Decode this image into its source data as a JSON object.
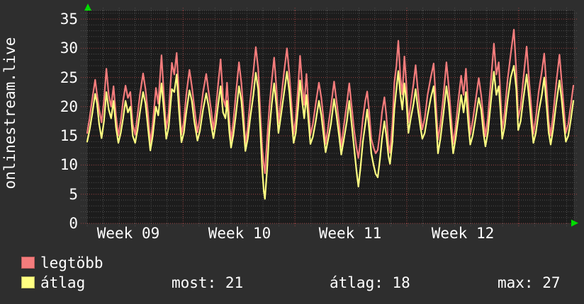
{
  "legend": [
    {
      "label": "legtöbb",
      "color": "#f47c7c",
      "border": "#b85b5b"
    },
    {
      "label": "átlag",
      "color": "#ffff82",
      "border": "#b6b65e"
    }
  ],
  "stats": [
    {
      "label": "most",
      "value": 21,
      "text": "most: 21"
    },
    {
      "label": "átlag",
      "value": 18,
      "text": "átlag: 18"
    },
    {
      "label": "max",
      "value": 27,
      "text": "max: 27"
    }
  ],
  "colors": {
    "background": "#2e2e2e",
    "plot_background": "#1c1c1c",
    "text": "#ffffff",
    "grid_minor": "#4f4f4f",
    "grid_major": "#9c4343",
    "axis_arrow": "#00dc00",
    "series_legtobb": "#f47c7c",
    "series_atlag": "#ffff82"
  },
  "chart_data": {
    "type": "line",
    "title": "onlinestream.live",
    "ylabel": "onlinestream.live",
    "xlabel": "",
    "ylim": [
      0,
      36.5
    ],
    "yticks": [
      0,
      5,
      10,
      15,
      20,
      25,
      30,
      35
    ],
    "y_minor_step": 1,
    "x_unit": "days",
    "xlim_days": [
      0,
      30.47
    ],
    "x_minor_step_days": 1,
    "week_boundaries_days": [
      6,
      13,
      20,
      27
    ],
    "xtick_labels": [
      "Week 09",
      "Week 10",
      "Week 11",
      "Week 12"
    ],
    "xtick_label_days": [
      2.57,
      9.53,
      16.45,
      23.5
    ],
    "grid": {
      "minor_color": "#4f4f4f",
      "major_color": "#9c4343",
      "style": "dotted"
    },
    "legend_position": "bottom-left",
    "series_names": [
      "legtöbb",
      "átlag"
    ],
    "series_colors": [
      "#f47c7c",
      "#ffff82"
    ],
    "points_format": [
      "day",
      "legtöbb",
      "átlag"
    ],
    "points": [
      [
        0.0,
        15.5,
        14.0
      ],
      [
        0.15,
        18.0,
        16.0
      ],
      [
        0.3,
        21.0,
        18.5
      ],
      [
        0.5,
        24.6,
        22.2
      ],
      [
        0.62,
        22.0,
        20.5
      ],
      [
        0.75,
        19.5,
        17.0
      ],
      [
        0.9,
        17.3,
        14.6
      ],
      [
        1.05,
        21.0,
        17.5
      ],
      [
        1.2,
        26.5,
        22.5
      ],
      [
        1.35,
        22.0,
        19.5
      ],
      [
        1.5,
        20.0,
        18.0
      ],
      [
        1.65,
        23.5,
        21.0
      ],
      [
        1.8,
        18.5,
        16.5
      ],
      [
        1.95,
        15.0,
        13.8
      ],
      [
        2.1,
        17.5,
        15.5
      ],
      [
        2.25,
        21.0,
        18.0
      ],
      [
        2.4,
        23.6,
        21.0
      ],
      [
        2.55,
        21.5,
        19.0
      ],
      [
        2.7,
        22.5,
        20.0
      ],
      [
        2.85,
        17.0,
        15.0
      ],
      [
        3.0,
        15.2,
        13.8
      ],
      [
        3.15,
        18.5,
        16.0
      ],
      [
        3.3,
        22.0,
        19.0
      ],
      [
        3.5,
        25.7,
        22.5
      ],
      [
        3.65,
        23.0,
        20.5
      ],
      [
        3.8,
        19.0,
        16.5
      ],
      [
        3.95,
        13.8,
        12.5
      ],
      [
        4.1,
        17.0,
        15.0
      ],
      [
        4.3,
        23.2,
        20.0
      ],
      [
        4.45,
        20.5,
        18.5
      ],
      [
        4.65,
        28.8,
        24.0
      ],
      [
        4.8,
        22.0,
        19.5
      ],
      [
        4.95,
        16.2,
        14.5
      ],
      [
        5.1,
        19.0,
        16.5
      ],
      [
        5.3,
        27.5,
        23.0
      ],
      [
        5.45,
        25.5,
        22.5
      ],
      [
        5.6,
        29.2,
        25.5
      ],
      [
        5.75,
        21.5,
        19.0
      ],
      [
        5.9,
        15.2,
        13.9
      ],
      [
        6.05,
        17.5,
        15.5
      ],
      [
        6.2,
        22.0,
        19.0
      ],
      [
        6.4,
        26.3,
        22.8
      ],
      [
        6.55,
        23.5,
        21.0
      ],
      [
        6.7,
        20.0,
        17.5
      ],
      [
        6.9,
        15.6,
        14.2
      ],
      [
        7.05,
        18.0,
        15.8
      ],
      [
        7.25,
        22.5,
        19.5
      ],
      [
        7.45,
        25.6,
        22.3
      ],
      [
        7.6,
        22.5,
        20.0
      ],
      [
        7.75,
        19.5,
        17.0
      ],
      [
        7.9,
        16.1,
        14.6
      ],
      [
        8.05,
        19.5,
        17.0
      ],
      [
        8.2,
        24.0,
        20.5
      ],
      [
        8.35,
        28.1,
        23.5
      ],
      [
        8.5,
        21.5,
        19.0
      ],
      [
        8.65,
        20.0,
        18.0
      ],
      [
        8.75,
        24.1,
        21.0
      ],
      [
        8.9,
        17.5,
        15.5
      ],
      [
        9.0,
        14.2,
        13.0
      ],
      [
        9.15,
        17.5,
        15.2
      ],
      [
        9.3,
        22.0,
        18.5
      ],
      [
        9.5,
        27.6,
        23.5
      ],
      [
        9.65,
        24.0,
        21.0
      ],
      [
        9.8,
        18.5,
        16.0
      ],
      [
        9.9,
        13.6,
        12.4
      ],
      [
        10.05,
        16.5,
        14.5
      ],
      [
        10.2,
        21.0,
        18.0
      ],
      [
        10.4,
        26.0,
        22.0
      ],
      [
        10.55,
        30.2,
        25.8
      ],
      [
        10.7,
        26.5,
        23.0
      ],
      [
        10.85,
        18.0,
        15.0
      ],
      [
        10.95,
        13.0,
        9.5
      ],
      [
        11.05,
        10.0,
        5.5
      ],
      [
        11.12,
        8.6,
        4.2
      ],
      [
        11.25,
        14.0,
        9.0
      ],
      [
        11.4,
        20.0,
        16.0
      ],
      [
        11.55,
        24.5,
        20.5
      ],
      [
        11.7,
        28.4,
        24.0
      ],
      [
        11.85,
        23.0,
        20.0
      ],
      [
        11.97,
        17.2,
        15.5
      ],
      [
        12.1,
        20.5,
        18.0
      ],
      [
        12.3,
        25.5,
        22.0
      ],
      [
        12.5,
        30.0,
        26.0
      ],
      [
        12.65,
        25.5,
        22.5
      ],
      [
        12.8,
        20.0,
        17.5
      ],
      [
        12.92,
        15.3,
        13.8
      ],
      [
        13.05,
        18.0,
        15.5
      ],
      [
        13.2,
        23.5,
        20.0
      ],
      [
        13.32,
        28.7,
        24.5
      ],
      [
        13.45,
        24.0,
        21.0
      ],
      [
        13.58,
        20.3,
        18.0
      ],
      [
        13.72,
        25.6,
        22.0
      ],
      [
        13.85,
        20.0,
        17.5
      ],
      [
        13.97,
        15.1,
        13.6
      ],
      [
        14.12,
        17.0,
        14.8
      ],
      [
        14.3,
        20.5,
        17.5
      ],
      [
        14.5,
        24.1,
        21.0
      ],
      [
        14.65,
        21.5,
        18.5
      ],
      [
        14.8,
        17.5,
        15.0
      ],
      [
        14.92,
        13.6,
        12.2
      ],
      [
        15.05,
        16.0,
        14.0
      ],
      [
        15.25,
        20.0,
        17.0
      ],
      [
        15.45,
        24.3,
        21.3
      ],
      [
        15.6,
        21.0,
        18.5
      ],
      [
        15.75,
        17.5,
        15.2
      ],
      [
        15.9,
        13.1,
        11.8
      ],
      [
        16.05,
        16.5,
        14.2
      ],
      [
        16.25,
        20.5,
        17.5
      ],
      [
        16.4,
        24.0,
        21.0
      ],
      [
        16.55,
        20.0,
        17.0
      ],
      [
        16.7,
        16.0,
        13.0
      ],
      [
        16.85,
        13.0,
        9.0
      ],
      [
        16.97,
        11.2,
        6.3
      ],
      [
        17.1,
        14.0,
        9.5
      ],
      [
        17.25,
        18.0,
        14.0
      ],
      [
        17.4,
        21.0,
        17.0
      ],
      [
        17.52,
        22.6,
        19.5
      ],
      [
        17.65,
        19.0,
        16.0
      ],
      [
        17.78,
        14.5,
        12.0
      ],
      [
        17.92,
        13.0,
        10.0
      ],
      [
        18.05,
        12.0,
        8.5
      ],
      [
        18.18,
        12.6,
        7.9
      ],
      [
        18.32,
        15.5,
        11.0
      ],
      [
        18.45,
        19.0,
        14.5
      ],
      [
        18.6,
        21.6,
        17.5
      ],
      [
        18.72,
        18.5,
        15.0
      ],
      [
        18.85,
        13.5,
        11.5
      ],
      [
        18.95,
        12.1,
        10.2
      ],
      [
        19.1,
        17.0,
        14.0
      ],
      [
        19.22,
        24.1,
        19.5
      ],
      [
        19.35,
        27.0,
        23.0
      ],
      [
        19.47,
        31.3,
        26.1
      ],
      [
        19.6,
        25.0,
        22.0
      ],
      [
        19.72,
        22.1,
        19.5
      ],
      [
        19.85,
        28.6,
        24.0
      ],
      [
        19.97,
        24.0,
        21.0
      ],
      [
        20.1,
        17.3,
        15.5
      ],
      [
        20.25,
        20.5,
        18.0
      ],
      [
        20.42,
        24.0,
        20.5
      ],
      [
        20.55,
        27.1,
        23.0
      ],
      [
        20.7,
        22.5,
        19.5
      ],
      [
        20.85,
        18.5,
        16.5
      ],
      [
        20.97,
        16.1,
        14.5
      ],
      [
        21.12,
        18.0,
        15.5
      ],
      [
        21.3,
        22.0,
        18.5
      ],
      [
        21.5,
        25.0,
        21.5
      ],
      [
        21.68,
        27.4,
        23.5
      ],
      [
        21.82,
        21.0,
        18.0
      ],
      [
        21.95,
        14.3,
        12.0
      ],
      [
        22.1,
        17.0,
        14.5
      ],
      [
        22.28,
        21.5,
        18.5
      ],
      [
        22.48,
        27.6,
        23.5
      ],
      [
        22.62,
        23.5,
        20.5
      ],
      [
        22.78,
        18.0,
        15.5
      ],
      [
        22.9,
        13.6,
        12.0
      ],
      [
        23.05,
        16.5,
        14.5
      ],
      [
        23.22,
        21.0,
        18.0
      ],
      [
        23.4,
        25.3,
        22.0
      ],
      [
        23.55,
        22.0,
        19.0
      ],
      [
        23.7,
        26.5,
        22.5
      ],
      [
        23.85,
        20.0,
        17.0
      ],
      [
        23.97,
        15.2,
        13.5
      ],
      [
        24.12,
        17.5,
        15.0
      ],
      [
        24.3,
        21.0,
        18.0
      ],
      [
        24.5,
        24.9,
        21.5
      ],
      [
        24.65,
        22.0,
        19.5
      ],
      [
        24.8,
        18.0,
        15.5
      ],
      [
        24.92,
        14.9,
        13.2
      ],
      [
        25.07,
        18.0,
        15.5
      ],
      [
        25.25,
        24.0,
        20.5
      ],
      [
        25.45,
        30.8,
        26.0
      ],
      [
        25.6,
        25.5,
        22.0
      ],
      [
        25.75,
        27.6,
        23.5
      ],
      [
        25.88,
        21.0,
        18.5
      ],
      [
        25.97,
        16.0,
        14.5
      ],
      [
        26.12,
        19.0,
        16.5
      ],
      [
        26.3,
        24.5,
        21.0
      ],
      [
        26.5,
        29.0,
        25.0
      ],
      [
        26.7,
        33.2,
        27.0
      ],
      [
        26.85,
        26.0,
        23.0
      ],
      [
        26.97,
        18.0,
        16.0
      ],
      [
        27.12,
        20.0,
        17.5
      ],
      [
        27.3,
        25.0,
        21.5
      ],
      [
        27.5,
        30.3,
        25.5
      ],
      [
        27.65,
        24.5,
        21.5
      ],
      [
        27.8,
        19.5,
        17.0
      ],
      [
        27.92,
        15.3,
        13.8
      ],
      [
        28.07,
        18.0,
        15.5
      ],
      [
        28.25,
        22.5,
        19.0
      ],
      [
        28.45,
        26.0,
        22.0
      ],
      [
        28.6,
        29.1,
        25.0
      ],
      [
        28.75,
        23.0,
        20.0
      ],
      [
        28.88,
        17.5,
        15.5
      ],
      [
        29.0,
        15.0,
        13.5
      ],
      [
        29.15,
        18.5,
        16.0
      ],
      [
        29.35,
        24.0,
        20.5
      ],
      [
        29.55,
        28.9,
        24.5
      ],
      [
        29.7,
        24.0,
        21.0
      ],
      [
        29.85,
        19.0,
        16.5
      ],
      [
        29.95,
        15.5,
        14.0
      ],
      [
        30.1,
        17.0,
        15.0
      ],
      [
        30.25,
        20.0,
        17.5
      ],
      [
        30.42,
        23.6,
        21.0
      ]
    ]
  }
}
